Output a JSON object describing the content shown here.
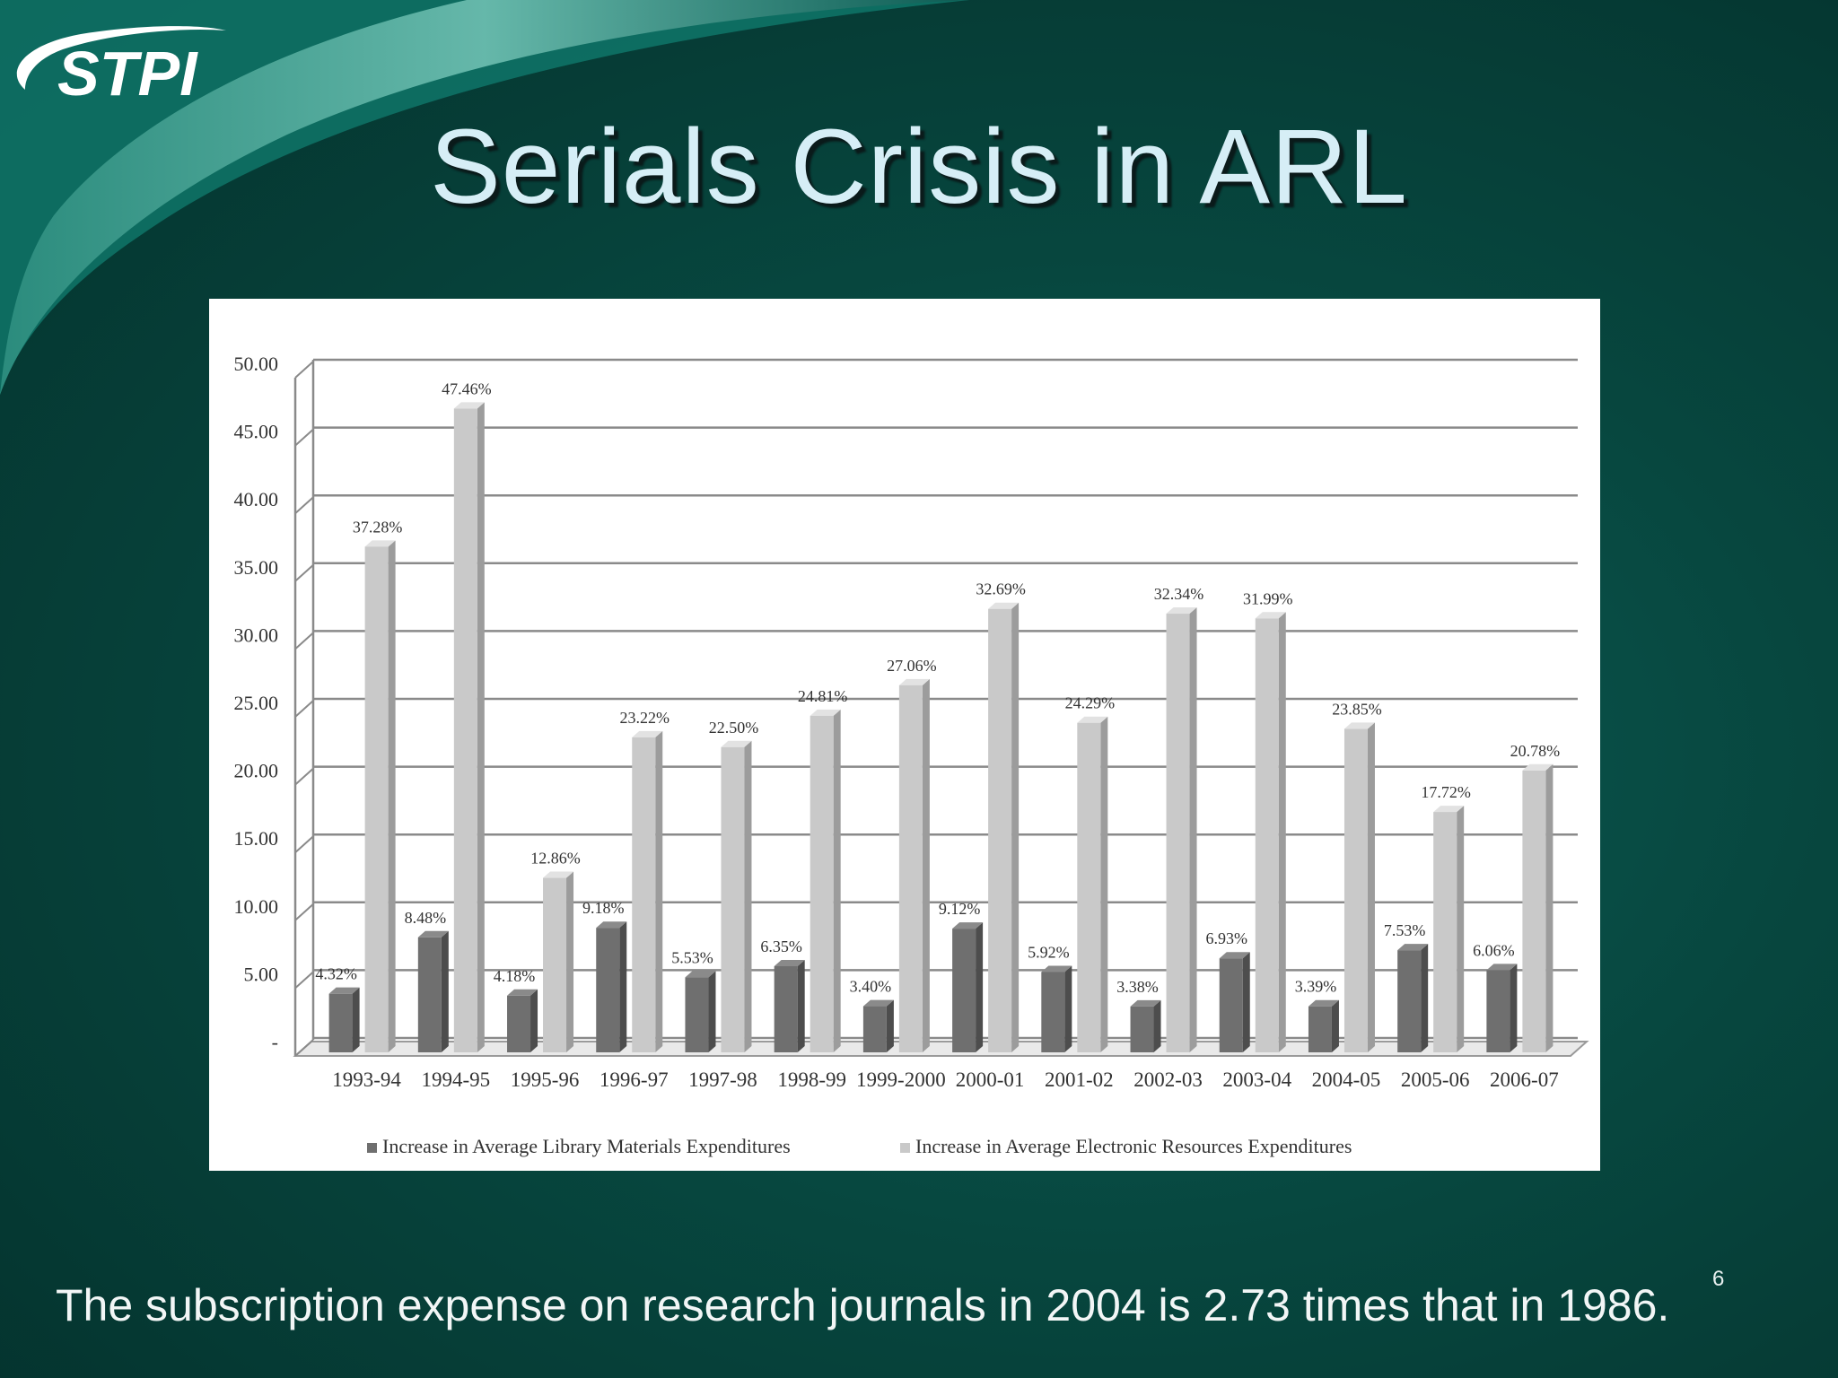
{
  "logo": {
    "text": "STPI"
  },
  "slide": {
    "title": "Serials Crisis in ARL",
    "footnote": "The subscription expense on research journals in 2004 is 2.73 times that in 1986.",
    "page_number": "6"
  },
  "colors": {
    "background": "#07473f",
    "title_text": "#d6eef6",
    "series_dark": "#6f6f6f",
    "series_light": "#c9c9c9",
    "gridline": "#8a8a8a",
    "swoosh": "#7fc8bc"
  },
  "chart_data": {
    "type": "bar",
    "style": "3d-clustered-column",
    "categories": [
      "1993-94",
      "1994-95",
      "1995-96",
      "1996-97",
      "1997-98",
      "1998-99",
      "1999-2000",
      "2000-01",
      "2001-02",
      "2002-03",
      "2003-04",
      "2004-05",
      "2005-06",
      "2006-07"
    ],
    "series": [
      {
        "name": "Increase in Average Library Materials Expenditures",
        "values": [
          4.32,
          8.48,
          4.18,
          9.18,
          5.53,
          6.35,
          3.4,
          9.12,
          5.92,
          3.38,
          6.93,
          3.39,
          7.53,
          6.06
        ],
        "labels": [
          "4.32%",
          "8.48%",
          "4.18%",
          "9.18%",
          "5.53%",
          "6.35%",
          "3.40%",
          "9.12%",
          "5.92%",
          "3.38%",
          "6.93%",
          "3.39%",
          "7.53%",
          "6.06%"
        ]
      },
      {
        "name": "Increase in Average Electronic Resources Expenditures",
        "values": [
          37.28,
          47.46,
          12.86,
          23.22,
          22.5,
          24.81,
          27.06,
          32.69,
          24.29,
          32.34,
          31.99,
          23.85,
          17.72,
          20.78
        ],
        "labels": [
          "37.28%",
          "47.46%",
          "12.86%",
          "23.22%",
          "22.50%",
          "24.81%",
          "27.06%",
          "32.69%",
          "24.29%",
          "32.34%",
          "31.99%",
          "23.85%",
          "17.72%",
          "20.78%"
        ]
      }
    ],
    "y_ticks": [
      "-",
      "5.00",
      "10.00",
      "15.00",
      "20.00",
      "25.00",
      "30.00",
      "35.00",
      "40.00",
      "45.00",
      "50.00"
    ],
    "ylim": [
      0,
      50
    ],
    "grid": true,
    "legend_position": "bottom"
  }
}
